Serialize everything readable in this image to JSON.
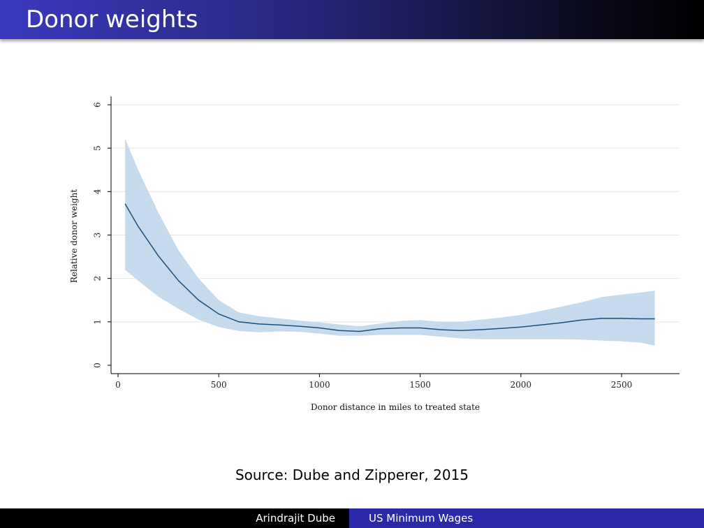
{
  "slide": {
    "title": "Donor weights",
    "source": "Source: Dube and Zipperer, 2015"
  },
  "footer": {
    "author": "Arindrajit Dube",
    "topic": "US Minimum Wages"
  },
  "colors": {
    "band": "#c6daee",
    "line": "#1a4f7a",
    "title_bar_start": "#3a3abf",
    "footer_right": "#2a2aa8"
  },
  "chart_data": {
    "type": "line",
    "xlabel": "Donor distance in miles to treated state",
    "ylabel": "Relative donor weight",
    "xlim": [
      0,
      2800
    ],
    "ylim": [
      0,
      6.2
    ],
    "x_ticks": [
      0,
      500,
      1000,
      1500,
      2000,
      2500
    ],
    "y_ticks": [
      0,
      1,
      2,
      3,
      4,
      5,
      6
    ],
    "grid": "horizontal",
    "series": [
      {
        "x": [
          35,
          100,
          200,
          300,
          400,
          500,
          600,
          700,
          800,
          900,
          1000,
          1100,
          1200,
          1300,
          1400,
          1500,
          1600,
          1700,
          1800,
          1900,
          2000,
          2100,
          2200,
          2300,
          2400,
          2500,
          2600,
          2665
        ],
        "y": [
          3.72,
          3.2,
          2.52,
          1.95,
          1.5,
          1.18,
          1.0,
          0.95,
          0.93,
          0.9,
          0.86,
          0.8,
          0.78,
          0.84,
          0.86,
          0.86,
          0.82,
          0.8,
          0.82,
          0.85,
          0.88,
          0.93,
          0.98,
          1.04,
          1.08,
          1.08,
          1.07,
          1.07
        ],
        "ci_low": [
          2.2,
          1.95,
          1.58,
          1.3,
          1.05,
          0.88,
          0.79,
          0.76,
          0.78,
          0.77,
          0.73,
          0.68,
          0.68,
          0.7,
          0.7,
          0.7,
          0.66,
          0.62,
          0.6,
          0.6,
          0.6,
          0.6,
          0.6,
          0.59,
          0.57,
          0.55,
          0.52,
          0.45
        ],
        "ci_high": [
          5.22,
          4.5,
          3.52,
          2.65,
          2.0,
          1.5,
          1.22,
          1.13,
          1.08,
          1.03,
          0.99,
          0.94,
          0.9,
          0.96,
          1.02,
          1.04,
          1.0,
          1.0,
          1.05,
          1.1,
          1.16,
          1.25,
          1.35,
          1.45,
          1.57,
          1.63,
          1.68,
          1.72
        ]
      }
    ]
  }
}
